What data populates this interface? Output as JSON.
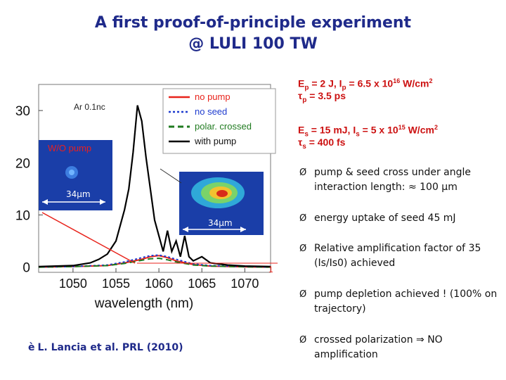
{
  "title": {
    "line1": "A first  proof-of-principle experiment",
    "line2": "@ LULI 100 TW"
  },
  "params": {
    "pump_energy": {
      "symbol": "E",
      "sub": "p",
      "text": " = 2 J, I",
      "sub2": "p",
      "text2": " = 6.5 x 10",
      "sup": "16",
      "text3": " W/cm",
      "sup2": "2"
    },
    "pump_duration": {
      "symbol": "τ",
      "sub": "p",
      "text": " = 3.5 ps"
    },
    "seed_energy": {
      "symbol": "E",
      "sub": "s",
      "text": " = 15 mJ, I",
      "sub2": "s",
      "text2": " = 5 x 10",
      "sup": "15",
      "text3": " W/cm",
      "sup2": "2"
    },
    "seed_duration": {
      "symbol": "τ",
      "sub": "s",
      "text": " = 400 fs"
    }
  },
  "bullets": [
    {
      "marker": "Ø",
      "text": "pump & seed cross under angle interaction length: ≈ 100 µm"
    },
    {
      "marker": "Ø",
      "text": "energy uptake of seed 45 mJ"
    },
    {
      "marker": "Ø",
      "text": "Relative amplification factor of 35 (Is/Is0) achieved"
    },
    {
      "marker": "Ø",
      "text": "pump depletion achieved ! (100% on trajectory)"
    },
    {
      "marker": "Ø",
      "text": "crossed polarization ⇒ NO amplification"
    }
  ],
  "reference": {
    "arrow": "è",
    "text": "L. Lancia et al. PRL (2010)"
  },
  "figure": {
    "annotation": "Ar 0.1nc",
    "inset_left_label": "W/O pump",
    "inset_left_scale": "34µm",
    "inset_right_scale": "34µm",
    "side_mark": "1",
    "legend": [
      {
        "label": "no pump",
        "color": "#e8231b",
        "style": "solid"
      },
      {
        "label": "no seed",
        "color": "#1f3ccf",
        "style": "dotted"
      },
      {
        "label": "polar. crossed",
        "color": "#1f7a1f",
        "style": "dashed"
      },
      {
        "label": "with pump",
        "color": "#000000",
        "style": "solid"
      }
    ]
  },
  "chart_data": {
    "type": "line",
    "xlabel": "wavelength (nm)",
    "ylabel": "",
    "xlim": [
      1046,
      1073
    ],
    "ylim": [
      -1,
      35
    ],
    "xticks": [
      1050,
      1055,
      1060,
      1065,
      1070
    ],
    "yticks": [
      0,
      10,
      20,
      30
    ],
    "series": [
      {
        "name": "with pump",
        "x": [
          1046,
          1050,
          1052,
          1053,
          1054,
          1055,
          1056,
          1056.5,
          1057,
          1057.5,
          1058,
          1058.5,
          1059,
          1059.5,
          1060,
          1060.5,
          1061,
          1061.5,
          1062,
          1062.5,
          1063,
          1063.5,
          1064,
          1065,
          1066,
          1068,
          1070,
          1073
        ],
        "y": [
          0.1,
          0.3,
          0.8,
          1.5,
          2.5,
          5,
          11,
          15,
          22,
          31,
          28,
          21,
          15,
          9,
          6,
          3,
          7,
          3,
          5,
          2,
          6,
          2,
          1.2,
          2,
          0.8,
          0.4,
          0.2,
          0.1
        ]
      },
      {
        "name": "no pump",
        "x": [
          1046,
          1050,
          1054,
          1056,
          1058,
          1059,
          1060,
          1061,
          1062,
          1064,
          1066,
          1070,
          1073
        ],
        "y": [
          0,
          0.1,
          0.3,
          0.8,
          1.5,
          2,
          2.2,
          1.8,
          1.2,
          0.5,
          0.2,
          0.05,
          0
        ]
      },
      {
        "name": "no seed",
        "x": [
          1046,
          1050,
          1054,
          1056,
          1058,
          1059,
          1060,
          1061,
          1062,
          1064,
          1066,
          1070,
          1073
        ],
        "y": [
          0,
          0.1,
          0.4,
          1.0,
          1.8,
          2.2,
          2.3,
          2.0,
          1.5,
          0.6,
          0.3,
          0.1,
          0
        ]
      },
      {
        "name": "polar. crossed",
        "x": [
          1046,
          1050,
          1054,
          1056,
          1058,
          1059,
          1060,
          1061,
          1062,
          1064,
          1066,
          1070,
          1073
        ],
        "y": [
          0,
          0.1,
          0.3,
          0.7,
          1.3,
          1.6,
          1.7,
          1.4,
          1.0,
          0.4,
          0.2,
          0.05,
          0
        ]
      }
    ]
  }
}
